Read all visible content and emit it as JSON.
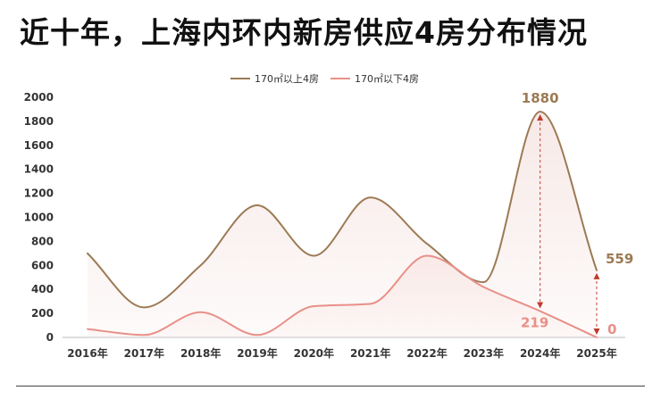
{
  "title": "近十年，上海内环内新房供应4房分布情况",
  "colors": {
    "series_above": "#9c7a54",
    "series_below": "#e89088",
    "fill_above": "#f4e2df",
    "fill_below": "#f9e6e3"
  },
  "chart_data": {
    "type": "line",
    "title": "近十年，上海内环内新房供应4房分布情况",
    "categories": [
      "2016年",
      "2017年",
      "2018年",
      "2019年",
      "2020年",
      "2021年",
      "2022年",
      "2023年",
      "2024年",
      "2025年"
    ],
    "x": [
      2016,
      2017,
      2018,
      2019,
      2020,
      2021,
      2022,
      2023,
      2024,
      2025
    ],
    "series": [
      {
        "name": "170㎡以上4房",
        "values": [
          700,
          250,
          600,
          1100,
          680,
          1165,
          780,
          460,
          1880,
          559
        ]
      },
      {
        "name": "170㎡以下4房",
        "values": [
          70,
          20,
          210,
          20,
          260,
          280,
          680,
          420,
          219,
          0
        ]
      }
    ],
    "ylim": [
      0,
      2000
    ],
    "yticks": [
      0,
      200,
      400,
      600,
      800,
      1000,
      1200,
      1400,
      1600,
      1800,
      2000
    ],
    "grid": false,
    "legend_position": "top-center",
    "annotations": [
      {
        "series": 0,
        "index": 8,
        "text": "1880"
      },
      {
        "series": 0,
        "index": 9,
        "text": "559"
      },
      {
        "series": 1,
        "index": 8,
        "text": "219"
      },
      {
        "series": 1,
        "index": 9,
        "text": "0"
      }
    ]
  }
}
